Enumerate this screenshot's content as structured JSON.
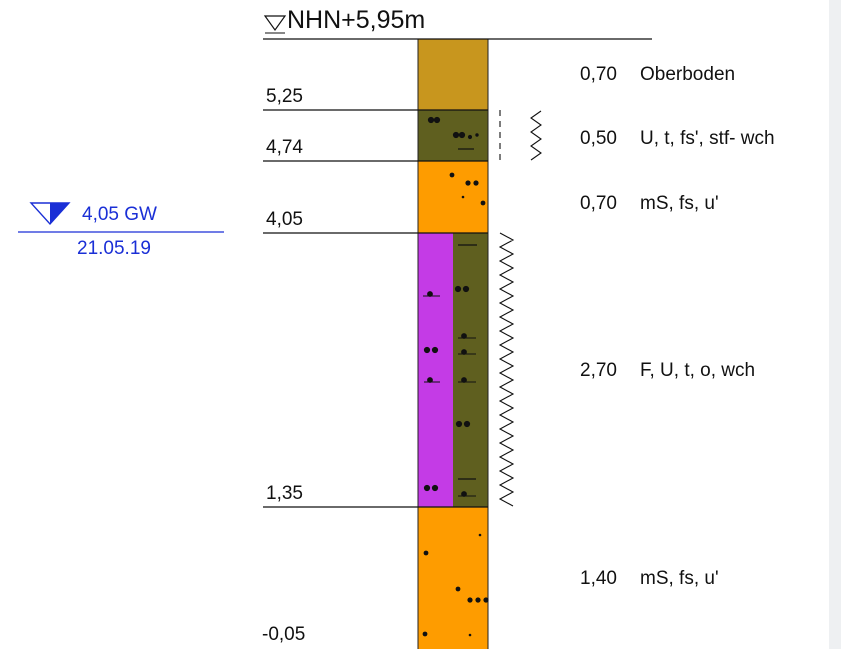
{
  "header": {
    "elevation": "NHN+5,95m"
  },
  "depth_labels": [
    "5,25",
    "4,74",
    "4,05",
    "1,35",
    "-0,05"
  ],
  "layers": [
    {
      "thickness": "0,70",
      "description": "Oberboden"
    },
    {
      "thickness": "0,50",
      "description": "U, t, fs', stf- wch"
    },
    {
      "thickness": "0,70",
      "description": "mS, fs, u'"
    },
    {
      "thickness": "2,70",
      "description": "F, U, t, o, wch"
    },
    {
      "thickness": "1,40",
      "description": "mS, fs, u'"
    }
  ],
  "groundwater": {
    "level": "4,05 GW",
    "date": "21.05.19"
  },
  "colors": {
    "topsoil": "#c8961e",
    "silt": "#5f5f1f",
    "sand": "#fe9c00",
    "peat": "#c43be6",
    "groundwater": "#1a2fd6"
  }
}
